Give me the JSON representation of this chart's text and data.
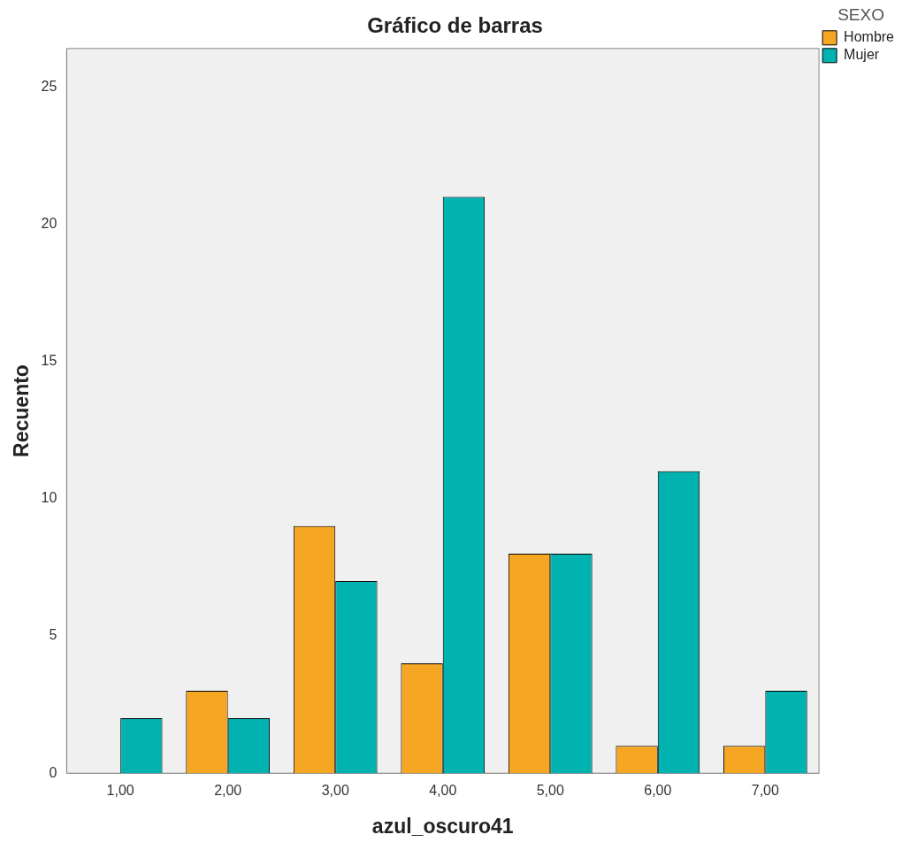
{
  "chart_data": {
    "type": "bar",
    "title": "Gráfico de barras",
    "xlabel": "azul_oscuro41",
    "ylabel": "Recuento",
    "legend_title": "SEXO",
    "categories": [
      "1,00",
      "2,00",
      "3,00",
      "4,00",
      "5,00",
      "6,00",
      "7,00"
    ],
    "series": [
      {
        "name": "Hombre",
        "color": "#f5a623",
        "values": [
          0,
          3,
          9,
          4,
          8,
          1,
          1
        ]
      },
      {
        "name": "Mujer",
        "color": "#00b2b0",
        "values": [
          2,
          2,
          7,
          21,
          8,
          11,
          3
        ]
      }
    ],
    "ylim": [
      0,
      26.4
    ],
    "yticks": [
      0,
      5,
      10,
      15,
      20,
      25
    ],
    "grid": false,
    "legend": "top right"
  }
}
